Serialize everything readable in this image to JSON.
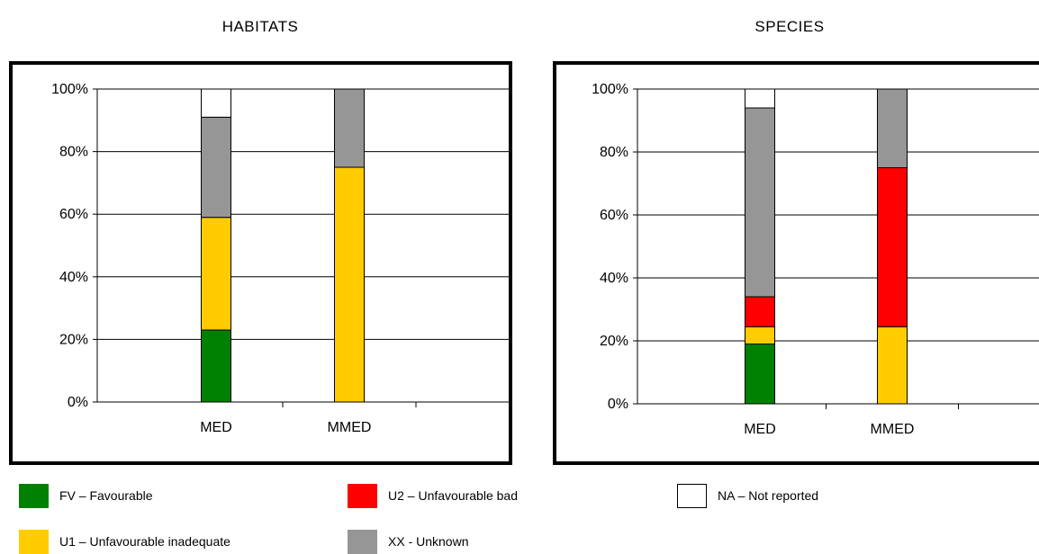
{
  "colors": {
    "FV": "#008000",
    "U1": "#FFCC00",
    "U2": "#FF0000",
    "XX": "#969696",
    "NA": "#FFFFFF"
  },
  "legend": [
    {
      "key": "FV",
      "label": "FV – Favourable"
    },
    {
      "key": "U2",
      "label": "U2 – Unfavourable bad"
    },
    {
      "key": "NA",
      "label": "NA – Not reported"
    },
    {
      "key": "U1",
      "label": "U1 – Unfavourable inadequate"
    },
    {
      "key": "XX",
      "label": "XX - Unknown"
    }
  ],
  "chart_data": [
    {
      "type": "bar",
      "stacked": true,
      "title": "HABITATS",
      "categories": [
        "MED",
        "MMED"
      ],
      "ylim": [
        0,
        100
      ],
      "yticks": [
        "0%",
        "20%",
        "40%",
        "60%",
        "80%",
        "100%"
      ],
      "grid": true,
      "series": [
        {
          "name": "FV – Favourable",
          "key": "FV",
          "values": [
            23,
            0
          ]
        },
        {
          "name": "U1 – Unfavourable inadequate",
          "key": "U1",
          "values": [
            36,
            75
          ]
        },
        {
          "name": "U2 – Unfavourable bad",
          "key": "U2",
          "values": [
            0,
            0
          ]
        },
        {
          "name": "XX - Unknown",
          "key": "XX",
          "values": [
            32,
            25
          ]
        },
        {
          "name": "NA – Not reported",
          "key": "NA",
          "values": [
            9,
            0
          ]
        }
      ]
    },
    {
      "type": "bar",
      "stacked": true,
      "title": "SPECIES",
      "categories": [
        "MED",
        "MMED"
      ],
      "ylim": [
        0,
        100
      ],
      "yticks": [
        "0%",
        "20%",
        "40%",
        "60%",
        "80%",
        "100%"
      ],
      "grid": true,
      "series": [
        {
          "name": "FV – Favourable",
          "key": "FV",
          "values": [
            19,
            0
          ]
        },
        {
          "name": "U1 – Unfavourable inadequate",
          "key": "U1",
          "values": [
            5.5,
            24.5
          ]
        },
        {
          "name": "U2 – Unfavourable bad",
          "key": "U2",
          "values": [
            9.5,
            50.5
          ]
        },
        {
          "name": "XX - Unknown",
          "key": "XX",
          "values": [
            60,
            25
          ]
        },
        {
          "name": "NA – Not reported",
          "key": "NA",
          "values": [
            6,
            0
          ]
        }
      ]
    }
  ]
}
